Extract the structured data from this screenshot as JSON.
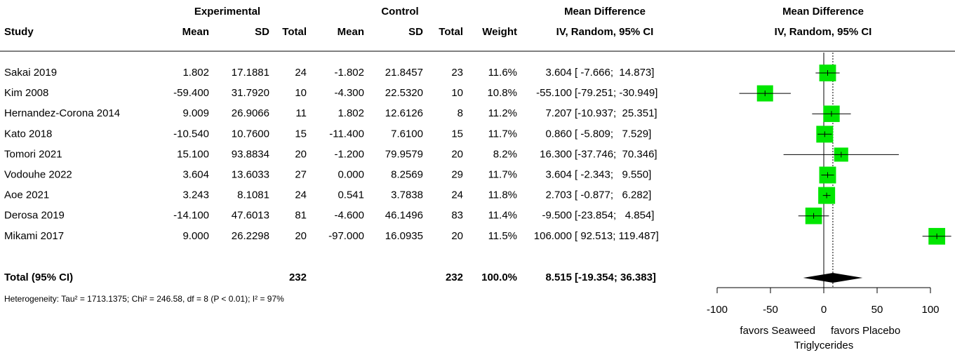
{
  "chart_data": {
    "type": "forest",
    "header_groups": [
      "Experimental",
      "Control",
      "Mean Difference",
      "Mean Difference"
    ],
    "columns": [
      "Study",
      "Mean",
      "SD",
      "Total",
      "Mean",
      "SD",
      "Total",
      "Weight",
      "IV, Random, 95% CI",
      "IV, Random, 95% CI"
    ],
    "table": {
      "rows": [
        [
          "Sakai 2019",
          "1.802",
          "17.1881",
          "24",
          "-1.802",
          "21.8457",
          "23"
        ],
        [
          "Kim 2008",
          "-59.400",
          "31.7920",
          "10",
          "-4.300",
          "22.5320",
          "10"
        ],
        [
          "Hernandez-Corona 2014",
          "9.009",
          "26.9066",
          "11",
          "1.802",
          "12.6126",
          "8"
        ],
        [
          "Kato 2018",
          "-10.540",
          "10.7600",
          "15",
          "-11.400",
          "7.6100",
          "15"
        ],
        [
          "Tomori 2021",
          "15.100",
          "93.8834",
          "20",
          "-1.200",
          "79.9579",
          "20"
        ],
        [
          "Vodouhe 2022",
          "3.604",
          "13.6033",
          "27",
          "0.000",
          "8.2569",
          "29"
        ],
        [
          "Aoe 2021",
          "3.243",
          "8.1081",
          "24",
          "0.541",
          "3.7838",
          "24"
        ],
        [
          "Derosa 2019",
          "-14.100",
          "47.6013",
          "81",
          "-4.600",
          "46.1496",
          "83"
        ],
        [
          "Mikami 2017",
          "9.000",
          "26.2298",
          "20",
          "-97.000",
          "16.0935",
          "20"
        ]
      ]
    },
    "series": [
      {
        "name": "Mean Difference",
        "color": "#00e600",
        "values": [
          3.604,
          -55.1,
          7.207,
          0.86,
          16.3,
          3.604,
          2.703,
          -9.5,
          106
        ],
        "value_labels": [
          "3.604",
          "-55.100",
          "7.207",
          "0.860",
          "16.300",
          "3.604",
          "2.703",
          "-9.500",
          "106.000"
        ],
        "lower": [
          -7.666,
          -79.251,
          -10.937,
          -5.809,
          -37.746,
          -2.343,
          -0.877,
          -23.854,
          92.513
        ],
        "upper": [
          14.873,
          -30.949,
          25.351,
          7.529,
          70.346,
          9.55,
          6.282,
          4.854,
          119.487
        ],
        "ci_labels": [
          "[ -7.666;  14.873]",
          "[-79.251; -30.949]",
          "[-10.937;  25.351]",
          "[ -5.809;   7.529]",
          "[-37.746;  70.346]",
          "[ -2.343;   9.550]",
          "[ -0.877;   6.282]",
          "[-23.854;   4.854]",
          "[ 92.513; 119.487]"
        ],
        "weights": [
          11.6,
          10.8,
          11.2,
          11.7,
          8.2,
          11.7,
          11.8,
          11.4,
          11.5
        ],
        "weight_labels": [
          "11.6%",
          "10.8%",
          "11.2%",
          "11.7%",
          "8.2%",
          "11.7%",
          "11.8%",
          "11.4%",
          "11.5%"
        ]
      }
    ],
    "total": {
      "label": "Total (95% CI)",
      "exp_total": "232",
      "ctrl_total": "232",
      "weight": "100.0%",
      "value": 8.515,
      "value_label": "8.515",
      "lower": -19.354,
      "upper": 36.383,
      "ci_label": "[-19.354; 36.383]"
    },
    "heterogeneity": "Heterogeneity: Tau² = 1713.1375; Chi² = 246.58, df = 8 (P < 0.01); I² = 97%",
    "xlim": [
      -100,
      100
    ],
    "xticks": [
      -100,
      -50,
      0,
      50,
      100
    ],
    "x_left_label": "favors Seaweed",
    "x_right_label": "favors Placebo",
    "xlabel": "Triglycerides"
  }
}
